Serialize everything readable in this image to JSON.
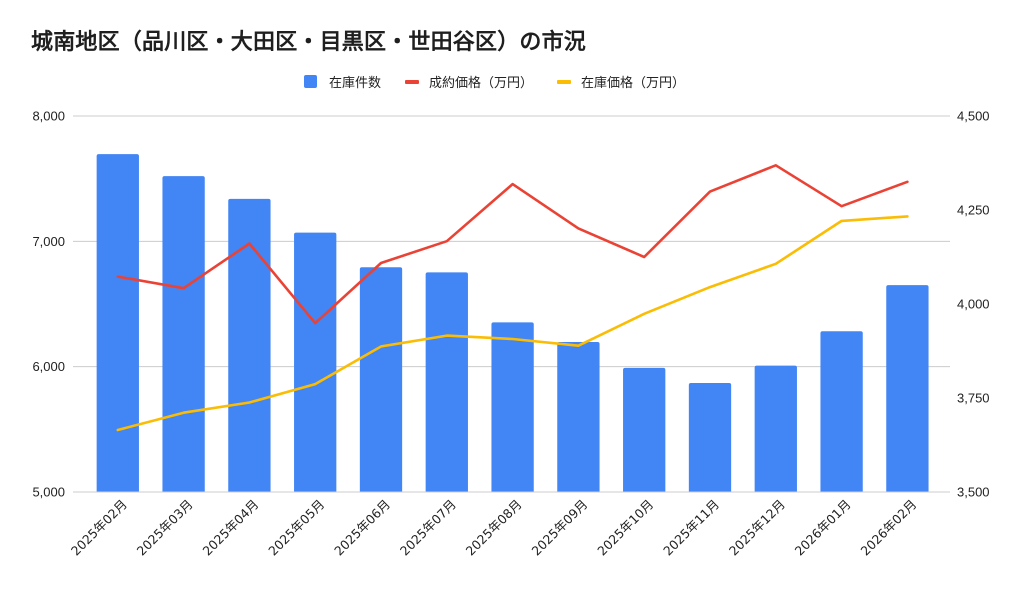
{
  "title": "城南地区（品川区・大田区・目黒区・世田谷区）の市況",
  "legend": [
    {
      "label": "在庫件数",
      "type": "box",
      "color": "#4285f4"
    },
    {
      "label": "成約価格（万円）",
      "type": "line",
      "color": "#ea4335"
    },
    {
      "label": "在庫価格（万円）",
      "type": "line",
      "color": "#fbbc04"
    }
  ],
  "chart_data": {
    "type": "bar+line",
    "title": "城南地区（品川区・大田区・目黒区・世田谷区）の市況",
    "categories": [
      "2025年02月",
      "2025年03月",
      "2025年04月",
      "2025年05月",
      "2025年06月",
      "2025年07月",
      "2025年08月",
      "2025年09月",
      "2025年10月",
      "2025年11月",
      "2025年12月",
      "2026年01月",
      "2026年02月"
    ],
    "series": [
      {
        "name": "在庫件数",
        "type": "bar",
        "axis": "left",
        "color": "#4285f4",
        "values": [
          7696,
          7520,
          7339,
          7069,
          6793,
          6752,
          6353,
          6197,
          5990,
          5870,
          6008,
          6283,
          6651
        ]
      },
      {
        "name": "成約価格（万円）",
        "type": "line",
        "axis": "right",
        "color": "#ea4335",
        "values": [
          4073,
          4042,
          4161,
          3949,
          4109,
          4167,
          4319,
          4201,
          4125,
          4299,
          4369,
          4260,
          4325
        ]
      },
      {
        "name": "在庫価格（万円）",
        "type": "line",
        "axis": "right",
        "color": "#fbbc04",
        "values": [
          3665,
          3711,
          3738,
          3787,
          3887,
          3916,
          3907,
          3889,
          3974,
          4045,
          4107,
          4221,
          4233
        ]
      }
    ],
    "left_axis": {
      "min": 5000,
      "max": 8000,
      "ticks": [
        5000,
        6000,
        7000,
        8000
      ],
      "tick_labels": [
        "5,000",
        "6,000",
        "7,000",
        "8,000"
      ]
    },
    "right_axis": {
      "min": 3500,
      "max": 4500,
      "ticks": [
        3500,
        3750,
        4000,
        4250,
        4500
      ],
      "tick_labels": [
        "3,500",
        "3,750",
        "4,000",
        "4,250",
        "4,500"
      ]
    },
    "xlabel": "",
    "ylabel": "",
    "grid": true,
    "legend_position": "top"
  }
}
